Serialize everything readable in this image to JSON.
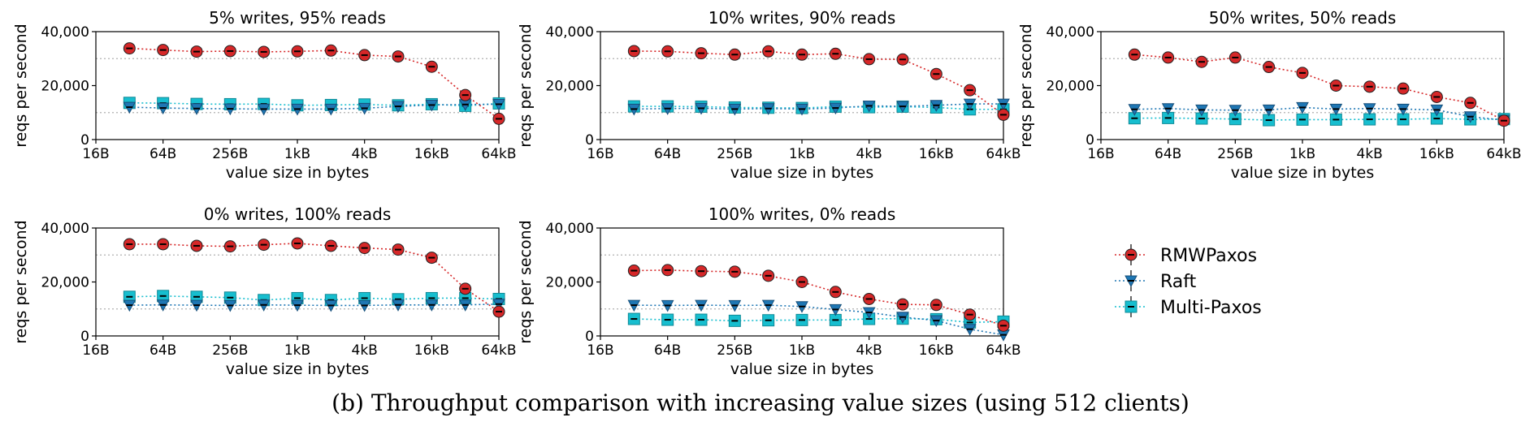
{
  "caption": "(b) Throughput comparison with increasing value sizes (using 512 clients)",
  "legend": {
    "placement": "right",
    "entries": [
      "RMWPaxos",
      "Raft",
      "Multi-Paxos"
    ]
  },
  "colors": {
    "RMWPaxos": "#d62728",
    "Raft": "#1f77b4",
    "Multi-Paxos": "#17becf",
    "grid": "#b0b0b0"
  },
  "chart_data": [
    {
      "type": "line",
      "title": "5% writes, 95% reads",
      "xlabel": "value size in bytes",
      "ylabel": "reqs per second",
      "x_scale": "log2",
      "x_ticks": [
        "16B",
        "64B",
        "256B",
        "1kB",
        "4kB",
        "16kB",
        "64kB"
      ],
      "y_ticks": [
        "0",
        "20,000",
        "40,000"
      ],
      "ylim": [
        0,
        40000
      ],
      "grid": "horizontal dotted",
      "x": [
        32,
        64,
        128,
        256,
        512,
        1024,
        2048,
        4096,
        8192,
        16384,
        32768,
        65536
      ],
      "series": [
        {
          "name": "RMWPaxos",
          "marker": "circle",
          "values": [
            33800,
            33200,
            32600,
            32800,
            32500,
            32700,
            33000,
            31300,
            30800,
            27000,
            16500,
            7700
          ]
        },
        {
          "name": "Raft",
          "marker": "triangle-down",
          "values": [
            12000,
            11700,
            11500,
            11400,
            11300,
            11300,
            11300,
            11600,
            12300,
            12800,
            13000,
            13100
          ]
        },
        {
          "name": "Multi-Paxos",
          "marker": "square",
          "values": [
            13600,
            13500,
            13200,
            13100,
            13200,
            12700,
            12800,
            13000,
            12700,
            13100,
            12500,
            13400
          ]
        }
      ]
    },
    {
      "type": "line",
      "title": "10% writes, 90% reads",
      "xlabel": "value size in bytes",
      "ylabel": "reqs per second",
      "x_scale": "log2",
      "x_ticks": [
        "16B",
        "64B",
        "256B",
        "1kB",
        "4kB",
        "16kB",
        "64kB"
      ],
      "y_ticks": [
        "0",
        "20,000",
        "40,000"
      ],
      "ylim": [
        0,
        40000
      ],
      "grid": "horizontal dotted",
      "x": [
        32,
        64,
        128,
        256,
        512,
        1024,
        2048,
        4096,
        8192,
        16384,
        32768,
        65536
      ],
      "series": [
        {
          "name": "RMWPaxos",
          "marker": "circle",
          "values": [
            32800,
            32700,
            32000,
            31500,
            32700,
            31500,
            31800,
            29800,
            29700,
            24300,
            18300,
            9200
          ]
        },
        {
          "name": "Raft",
          "marker": "triangle-down",
          "values": [
            11300,
            11500,
            11600,
            11300,
            11500,
            11300,
            11700,
            12500,
            12300,
            12700,
            13200,
            13200
          ]
        },
        {
          "name": "Multi-Paxos",
          "marker": "square",
          "values": [
            12300,
            12300,
            12200,
            11900,
            11800,
            11700,
            12200,
            12000,
            12200,
            11900,
            11200,
            11200
          ]
        }
      ]
    },
    {
      "type": "line",
      "title": "50% writes, 50% reads",
      "xlabel": "value size in bytes",
      "ylabel": "reqs per second",
      "x_scale": "log2",
      "x_ticks": [
        "16B",
        "64B",
        "256B",
        "1kB",
        "4kB",
        "16kB",
        "64kB"
      ],
      "y_ticks": [
        "0",
        "20,000",
        "40,000"
      ],
      "ylim": [
        0,
        40000
      ],
      "grid": "horizontal dotted",
      "x": [
        32,
        64,
        128,
        256,
        512,
        1024,
        2048,
        4096,
        8192,
        16384,
        32768,
        65536
      ],
      "series": [
        {
          "name": "RMWPaxos",
          "marker": "circle",
          "values": [
            31500,
            30400,
            28800,
            30400,
            26900,
            24700,
            20000,
            19600,
            18900,
            15800,
            13600,
            7000
          ]
        },
        {
          "name": "Raft",
          "marker": "triangle-down",
          "values": [
            11200,
            11500,
            11000,
            10900,
            11000,
            11900,
            11300,
            11500,
            11300,
            11000,
            8500,
            7200
          ]
        },
        {
          "name": "Multi-Paxos",
          "marker": "square",
          "values": [
            7900,
            8000,
            7800,
            7600,
            7200,
            7400,
            7400,
            7500,
            7500,
            7800,
            7500,
            7600
          ]
        }
      ]
    },
    {
      "type": "line",
      "title": "0% writes, 100% reads",
      "xlabel": "value size in bytes",
      "ylabel": "reqs per second",
      "x_scale": "log2",
      "x_ticks": [
        "16B",
        "64B",
        "256B",
        "1kB",
        "4kB",
        "16kB",
        "64kB"
      ],
      "y_ticks": [
        "0",
        "20,000",
        "40,000"
      ],
      "ylim": [
        0,
        40000
      ],
      "grid": "horizontal dotted",
      "x": [
        32,
        64,
        128,
        256,
        512,
        1024,
        2048,
        4096,
        8192,
        16384,
        32768,
        65536
      ],
      "series": [
        {
          "name": "RMWPaxos",
          "marker": "circle",
          "values": [
            34000,
            34000,
            33400,
            33200,
            33800,
            34300,
            33400,
            32600,
            32000,
            29000,
            17500,
            9000
          ]
        },
        {
          "name": "Raft",
          "marker": "triangle-down",
          "values": [
            11400,
            11500,
            11400,
            11300,
            11500,
            11400,
            11300,
            11300,
            11500,
            11500,
            11500,
            11800
          ]
        },
        {
          "name": "Multi-Paxos",
          "marker": "square",
          "values": [
            14500,
            14800,
            14500,
            14200,
            13300,
            14000,
            13300,
            14000,
            13600,
            14000,
            14000,
            13700
          ]
        }
      ]
    },
    {
      "type": "line",
      "title": "100% writes, 0% reads",
      "xlabel": "value size in bytes",
      "ylabel": "reqs per second",
      "x_scale": "log2",
      "x_ticks": [
        "16B",
        "64B",
        "256B",
        "1kB",
        "4kB",
        "16kB",
        "64kB"
      ],
      "y_ticks": [
        "0",
        "20,000",
        "40,000"
      ],
      "ylim": [
        0,
        40000
      ],
      "grid": "horizontal dotted",
      "x": [
        32,
        64,
        128,
        256,
        512,
        1024,
        2048,
        4096,
        8192,
        16384,
        32768,
        65536
      ],
      "series": [
        {
          "name": "RMWPaxos",
          "marker": "circle",
          "values": [
            24200,
            24400,
            24000,
            23800,
            22300,
            20000,
            16300,
            13700,
            11700,
            11500,
            7900,
            3800
          ]
        },
        {
          "name": "Raft",
          "marker": "triangle-down",
          "values": [
            11400,
            11300,
            11400,
            11300,
            11400,
            10900,
            9800,
            8700,
            7000,
            5700,
            2500,
            400
          ]
        },
        {
          "name": "Multi-Paxos",
          "marker": "square",
          "values": [
            6300,
            6000,
            6000,
            5600,
            5800,
            5900,
            5900,
            6300,
            6400,
            6200,
            5000,
            5300
          ]
        }
      ]
    }
  ]
}
